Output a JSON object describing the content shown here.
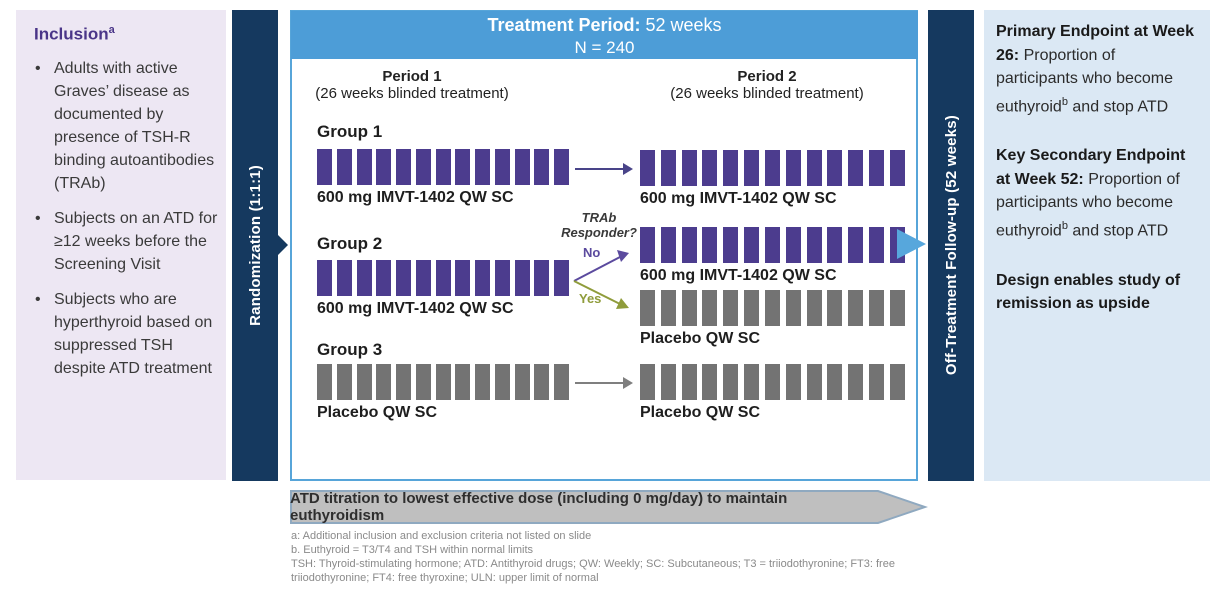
{
  "colors": {
    "navy": "#15395F",
    "header_blue": "#4D9DD7",
    "drug_purple": "#4C3C8E",
    "placebo_gray": "#737373",
    "no_purple": "#5B4A9E",
    "yes_olive": "#8F9C3B",
    "inclusion_bg": "#EDE7F3",
    "endpoints_bg": "#DBE8F4",
    "banner_gray": "#BFBFBF",
    "flow_arrow_blue": "#57A7DC"
  },
  "inclusion": {
    "title": "Inclusion",
    "title_sup": "a",
    "items": [
      "Adults with active Graves’ disease as documented by presence of TSH-R binding autoantibodies (TRAb)",
      "Subjects on an ATD for ≥12 weeks before the Screening Visit",
      "Subjects who are hyperthyroid based on suppressed TSH despite ATD treatment"
    ]
  },
  "randomization": {
    "label": "Randomization (1:1:1)"
  },
  "treatment": {
    "title_bold": "Treatment Period:",
    "title_rest": " 52 weeks",
    "n_label": "N = 240",
    "period1": {
      "name": "Period 1",
      "sub": "(26 weeks blinded treatment)"
    },
    "period2": {
      "name": "Period 2",
      "sub": "(26 weeks blinded treatment)"
    }
  },
  "groups": {
    "group1": {
      "name": "Group 1",
      "p1": {
        "dose": "600 mg IMVT-1402 QW SC",
        "bars": {
          "count": 13,
          "type": "drug"
        }
      },
      "p2": {
        "dose": "600 mg IMVT-1402 QW SC",
        "bars": {
          "count": 13,
          "type": "drug"
        }
      }
    },
    "group2": {
      "name": "Group 2",
      "p1": {
        "dose": "600 mg IMVT-1402 QW SC",
        "bars": {
          "count": 13,
          "type": "drug"
        }
      },
      "decision": {
        "line1": "TRAb",
        "line2": "Responder?",
        "no_label": "No",
        "yes_label": "Yes"
      },
      "p2_no": {
        "dose": "600 mg IMVT-1402 QW SC",
        "bars": {
          "count": 13,
          "type": "drug"
        }
      },
      "p2_yes": {
        "dose": "Placebo QW SC",
        "bars": {
          "count": 13,
          "type": "placebo"
        }
      }
    },
    "group3": {
      "name": "Group 3",
      "p1": {
        "dose": "Placebo QW SC",
        "bars": {
          "count": 13,
          "type": "placebo"
        }
      },
      "p2": {
        "dose": "Placebo QW SC",
        "bars": {
          "count": 13,
          "type": "placebo"
        }
      }
    }
  },
  "offtreatment": {
    "label": "Off-Treatment Follow-up (52 weeks)"
  },
  "endpoints": {
    "primary": {
      "bold": "Primary Endpoint at Week 26:",
      "before_sup": " Proportion of participants who become euthyroid",
      "sup": "b",
      "after_sup": " and stop ATD"
    },
    "secondary": {
      "bold": "Key Secondary Endpoint at Week 52:",
      "before_sup": " Proportion of participants who become euthyroid",
      "sup": "b",
      "after_sup": " and stop ATD"
    },
    "note": "Design enables study of remission  as upside"
  },
  "banner": {
    "label": "ATD titration to lowest effective dose (including 0 mg/day) to maintain euthyroidism"
  },
  "footnotes": [
    "a: Additional inclusion and exclusion criteria not listed on slide",
    "b. Euthyroid = T3/T4 and TSH within normal limits",
    "TSH: Thyroid-stimulating hormone; ATD: Antithyroid drugs; QW: Weekly; SC: Subcutaneous; T3 = triiodothyronine; FT3: free triiodothyronine; FT4: free thyroxine; ULN: upper limit of normal"
  ]
}
